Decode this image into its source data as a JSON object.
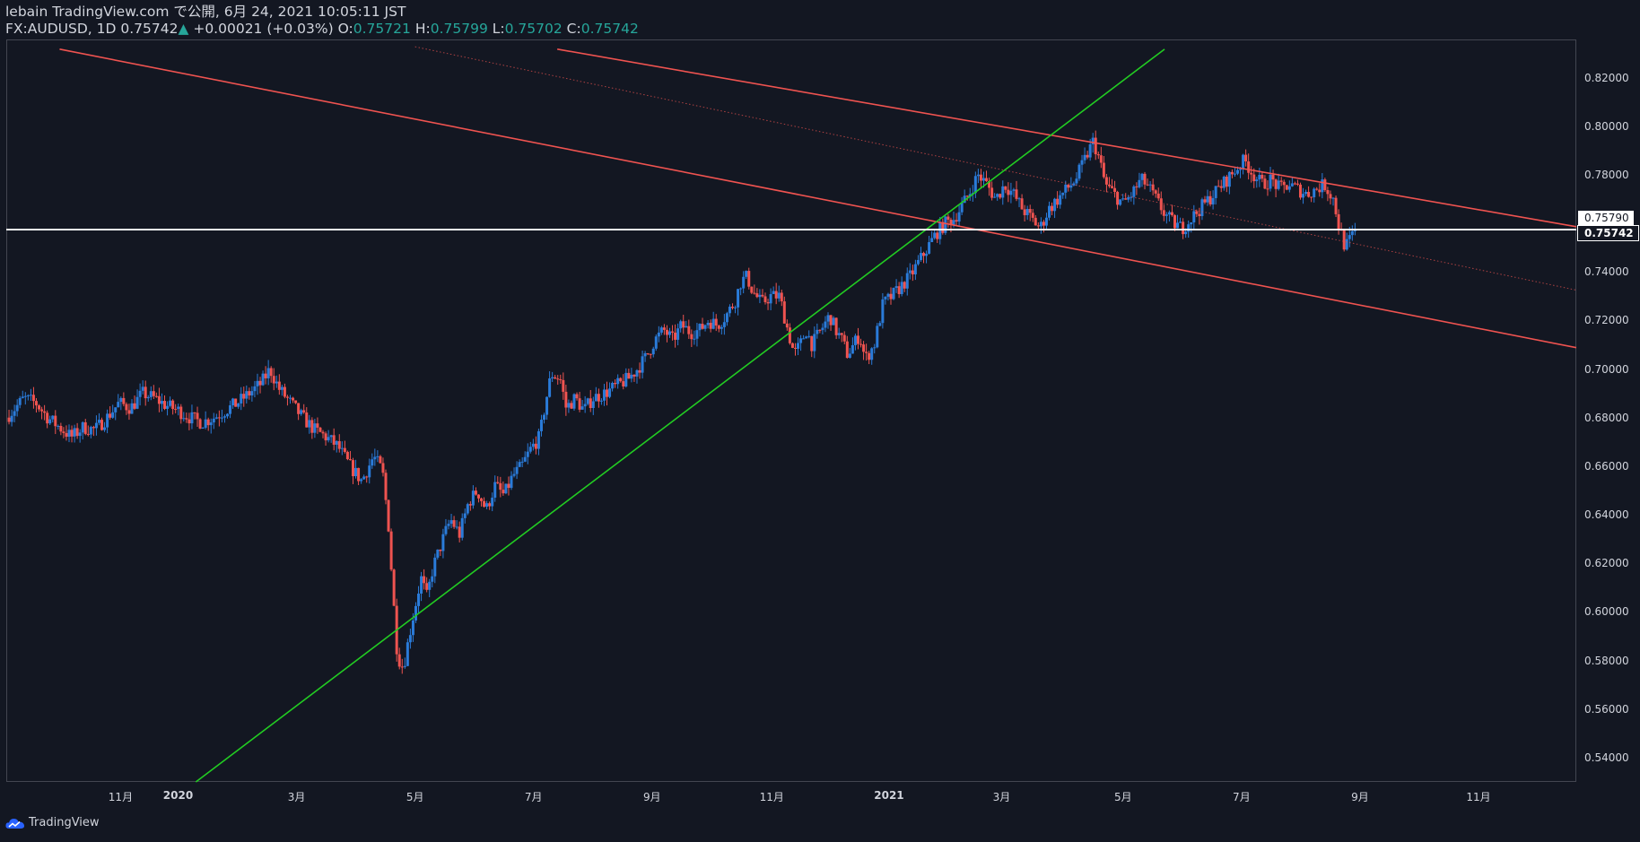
{
  "header": {
    "line1": "lebain TradingView.com で公開, 6月 24, 2021 10:05:11 JST",
    "symbol": "FX:AUDUSD, 1D",
    "last": "0.75742",
    "change_arrow": "▲",
    "change": "+0.00021 (+0.03%)",
    "open_label": "O:",
    "open": "0.75721",
    "high_label": "H:",
    "high": "0.75799",
    "low_label": "L:",
    "low": "0.75702",
    "close_label": "C:",
    "close": "0.75742"
  },
  "brand": {
    "label": "TradingView",
    "icon": "tradingview-cloud-icon"
  },
  "price_tags": {
    "upper": "0.75790",
    "current": "0.75742"
  },
  "colors": {
    "background": "#131722",
    "up_candle": "#2a7bd9",
    "down_candle": "#ef5350",
    "channel": "#ef5350",
    "trendline": "#22cc22",
    "horizontal_line": "#ffffff",
    "header_values": "#26a69a"
  },
  "chart_data": {
    "type": "candlestick",
    "symbol": "FX:AUDUSD",
    "interval": "1D",
    "y_ticks": [
      "0.82000",
      "0.80000",
      "0.78000",
      "0.76000",
      "0.74000",
      "0.72000",
      "0.70000",
      "0.68000",
      "0.66000",
      "0.64000",
      "0.62000",
      "0.60000",
      "0.58000",
      "0.56000",
      "0.54000"
    ],
    "ylim": [
      0.53,
      0.8357
    ],
    "x_ticks": [
      {
        "label": "11月",
        "t": 1.03,
        "bold": false
      },
      {
        "label": "2020",
        "t": 2.0,
        "bold": true
      },
      {
        "label": "3月",
        "t": 4.0,
        "bold": false
      },
      {
        "label": "5月",
        "t": 6.0,
        "bold": false
      },
      {
        "label": "7月",
        "t": 8.0,
        "bold": false
      },
      {
        "label": "9月",
        "t": 10.0,
        "bold": false
      },
      {
        "label": "11月",
        "t": 12.02,
        "bold": false
      },
      {
        "label": "2021",
        "t": 14.0,
        "bold": true
      },
      {
        "label": "3月",
        "t": 15.9,
        "bold": false
      },
      {
        "label": "5月",
        "t": 17.95,
        "bold": false
      },
      {
        "label": "7月",
        "t": 19.95,
        "bold": false
      },
      {
        "label": "9月",
        "t": 21.95,
        "bold": false
      },
      {
        "label": "11月",
        "t": 23.95,
        "bold": false
      }
    ],
    "xlim": [
      -0.9,
      25.6
    ],
    "price_path": [
      [
        -0.9,
        0.68
      ],
      [
        -0.6,
        0.688
      ],
      [
        -0.4,
        0.686
      ],
      [
        -0.2,
        0.68
      ],
      [
        0.0,
        0.676
      ],
      [
        0.2,
        0.672
      ],
      [
        0.4,
        0.676
      ],
      [
        0.6,
        0.675
      ],
      [
        0.8,
        0.68
      ],
      [
        1.0,
        0.686
      ],
      [
        1.2,
        0.684
      ],
      [
        1.4,
        0.69
      ],
      [
        1.6,
        0.688
      ],
      [
        1.8,
        0.685
      ],
      [
        2.0,
        0.683
      ],
      [
        2.2,
        0.68
      ],
      [
        2.4,
        0.678
      ],
      [
        2.6,
        0.68
      ],
      [
        2.8,
        0.683
      ],
      [
        3.0,
        0.686
      ],
      [
        3.2,
        0.69
      ],
      [
        3.4,
        0.694
      ],
      [
        3.55,
        0.7
      ],
      [
        3.7,
        0.692
      ],
      [
        3.9,
        0.686
      ],
      [
        4.1,
        0.68
      ],
      [
        4.3,
        0.675
      ],
      [
        4.5,
        0.672
      ],
      [
        4.7,
        0.668
      ],
      [
        4.9,
        0.66
      ],
      [
        5.1,
        0.654
      ],
      [
        5.3,
        0.664
      ],
      [
        5.45,
        0.658
      ],
      [
        5.55,
        0.636
      ],
      [
        5.62,
        0.61
      ],
      [
        5.7,
        0.582
      ],
      [
        5.8,
        0.577
      ],
      [
        5.9,
        0.59
      ],
      [
        6.0,
        0.602
      ],
      [
        6.1,
        0.614
      ],
      [
        6.2,
        0.606
      ],
      [
        6.3,
        0.618
      ],
      [
        6.4,
        0.625
      ],
      [
        6.5,
        0.632
      ],
      [
        6.6,
        0.638
      ],
      [
        6.75,
        0.632
      ],
      [
        6.9,
        0.645
      ],
      [
        7.05,
        0.65
      ],
      [
        7.2,
        0.642
      ],
      [
        7.35,
        0.652
      ],
      [
        7.5,
        0.648
      ],
      [
        7.65,
        0.656
      ],
      [
        7.8,
        0.66
      ],
      [
        7.95,
        0.667
      ],
      [
        8.1,
        0.672
      ],
      [
        8.2,
        0.686
      ],
      [
        8.3,
        0.698
      ],
      [
        8.45,
        0.696
      ],
      [
        8.55,
        0.684
      ],
      [
        8.7,
        0.688
      ],
      [
        8.85,
        0.683
      ],
      [
        9.0,
        0.688
      ],
      [
        9.2,
        0.69
      ],
      [
        9.4,
        0.693
      ],
      [
        9.6,
        0.696
      ],
      [
        9.75,
        0.7
      ],
      [
        9.9,
        0.705
      ],
      [
        10.05,
        0.712
      ],
      [
        10.2,
        0.716
      ],
      [
        10.35,
        0.712
      ],
      [
        10.5,
        0.718
      ],
      [
        10.65,
        0.715
      ],
      [
        10.8,
        0.716
      ],
      [
        10.95,
        0.72
      ],
      [
        11.1,
        0.718
      ],
      [
        11.25,
        0.722
      ],
      [
        11.4,
        0.728
      ],
      [
        11.5,
        0.736
      ],
      [
        11.6,
        0.738
      ],
      [
        11.7,
        0.732
      ],
      [
        11.85,
        0.727
      ],
      [
        12.0,
        0.73
      ],
      [
        12.15,
        0.73
      ],
      [
        12.3,
        0.715
      ],
      [
        12.4,
        0.706
      ],
      [
        12.5,
        0.71
      ],
      [
        12.6,
        0.716
      ],
      [
        12.7,
        0.71
      ],
      [
        12.85,
        0.716
      ],
      [
        13.0,
        0.722
      ],
      [
        13.1,
        0.716
      ],
      [
        13.2,
        0.712
      ],
      [
        13.3,
        0.706
      ],
      [
        13.4,
        0.71
      ],
      [
        13.5,
        0.714
      ],
      [
        13.6,
        0.704
      ],
      [
        13.75,
        0.71
      ],
      [
        13.9,
        0.727
      ],
      [
        14.05,
        0.73
      ],
      [
        14.2,
        0.734
      ],
      [
        14.35,
        0.738
      ],
      [
        14.5,
        0.744
      ],
      [
        14.65,
        0.75
      ],
      [
        14.8,
        0.756
      ],
      [
        14.95,
        0.76
      ],
      [
        15.1,
        0.762
      ],
      [
        15.25,
        0.768
      ],
      [
        15.35,
        0.772
      ],
      [
        15.5,
        0.78
      ],
      [
        15.65,
        0.776
      ],
      [
        15.8,
        0.77
      ],
      [
        15.95,
        0.776
      ],
      [
        16.1,
        0.772
      ],
      [
        16.25,
        0.766
      ],
      [
        16.4,
        0.762
      ],
      [
        16.55,
        0.758
      ],
      [
        16.7,
        0.766
      ],
      [
        16.85,
        0.77
      ],
      [
        17.0,
        0.774
      ],
      [
        17.15,
        0.778
      ],
      [
        17.3,
        0.786
      ],
      [
        17.45,
        0.794
      ],
      [
        17.55,
        0.786
      ],
      [
        17.65,
        0.776
      ],
      [
        17.8,
        0.772
      ],
      [
        17.95,
        0.768
      ],
      [
        18.1,
        0.772
      ],
      [
        18.25,
        0.778
      ],
      [
        18.35,
        0.776
      ],
      [
        18.5,
        0.77
      ],
      [
        18.65,
        0.764
      ],
      [
        18.8,
        0.76
      ],
      [
        18.95,
        0.758
      ],
      [
        19.1,
        0.762
      ],
      [
        19.25,
        0.766
      ],
      [
        19.4,
        0.77
      ],
      [
        19.55,
        0.774
      ],
      [
        19.7,
        0.778
      ],
      [
        19.85,
        0.782
      ],
      [
        20.0,
        0.786
      ],
      [
        20.15,
        0.78
      ],
      [
        20.3,
        0.776
      ],
      [
        20.45,
        0.778
      ],
      [
        20.6,
        0.774
      ],
      [
        20.75,
        0.776
      ],
      [
        20.9,
        0.774
      ],
      [
        21.05,
        0.772
      ],
      [
        21.2,
        0.774
      ],
      [
        21.35,
        0.776
      ],
      [
        21.5,
        0.77
      ],
      [
        21.6,
        0.758
      ],
      [
        21.7,
        0.75
      ],
      [
        21.8,
        0.754
      ],
      [
        21.88,
        0.757
      ]
    ],
    "drawings": [
      {
        "name": "channel-upper",
        "color": "#ef5350",
        "from": [
          8.4,
          0.8317
        ],
        "to": [
          25.6,
          0.7586
        ]
      },
      {
        "name": "channel-lower",
        "color": "#ef5350",
        "from": [
          0.0,
          0.8317
        ],
        "to": [
          25.6,
          0.7088
        ]
      },
      {
        "name": "channel-midline",
        "color": "#ef5350",
        "dotted": true,
        "from": [
          6.0,
          0.8327
        ],
        "to": [
          25.6,
          0.7325
        ]
      },
      {
        "name": "support-trendline",
        "color": "#22cc22",
        "from": [
          2.3,
          0.53
        ],
        "to": [
          18.65,
          0.8317
        ]
      },
      {
        "name": "horizontal-level",
        "color": "#ffffff",
        "from": [
          -0.9,
          0.7574
        ],
        "to": [
          25.6,
          0.7574
        ]
      }
    ]
  }
}
